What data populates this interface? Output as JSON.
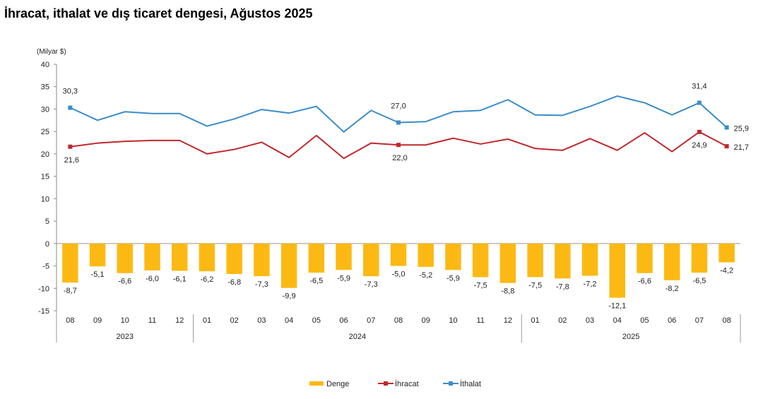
{
  "title": "İhracat, ithalat ve dış ticaret dengesi, Ağustos 2025",
  "chart_data": {
    "type": "bar+line",
    "unit_label": "(Milyar $)",
    "ylim": [
      -15,
      40
    ],
    "yticks": [
      40,
      35,
      30,
      25,
      20,
      15,
      10,
      5,
      0,
      -5,
      -10,
      -15
    ],
    "categories": [
      "08",
      "09",
      "10",
      "11",
      "12",
      "01",
      "02",
      "03",
      "04",
      "05",
      "06",
      "07",
      "08",
      "09",
      "10",
      "11",
      "12",
      "01",
      "02",
      "03",
      "04",
      "05",
      "06",
      "07",
      "08"
    ],
    "year_groups": [
      {
        "label": "2023",
        "start": 0,
        "end": 4
      },
      {
        "label": "2024",
        "start": 5,
        "end": 16
      },
      {
        "label": "2025",
        "start": 17,
        "end": 24
      }
    ],
    "series": [
      {
        "name": "Denge",
        "kind": "bar",
        "color": "#FDB913",
        "values": [
          -8.7,
          -5.1,
          -6.6,
          -6.0,
          -6.1,
          -6.2,
          -6.8,
          -7.3,
          -9.9,
          -6.5,
          -5.9,
          -7.3,
          -5.0,
          -5.2,
          -5.9,
          -7.5,
          -8.8,
          -7.5,
          -7.8,
          -7.2,
          -12.1,
          -6.6,
          -8.2,
          -6.5,
          -4.2
        ],
        "labels": [
          "-8,7",
          "-5,1",
          "-6,6",
          "-6,0",
          "-6,1",
          "-6,2",
          "-6,8",
          "-7,3",
          "-9,9",
          "-6,5",
          "-5,9",
          "-7,3",
          "-5,0",
          "-5,2",
          "-5,9",
          "-7,5",
          "-8,8",
          "-7,5",
          "-7,8",
          "-7,2",
          "-12,1",
          "-6,6",
          "-8,2",
          "-6,5",
          "-4,2"
        ]
      },
      {
        "name": "İhracat",
        "kind": "line",
        "color": "#C0282D",
        "values": [
          21.6,
          22.4,
          22.8,
          23.0,
          23.0,
          20.0,
          21.0,
          22.6,
          19.2,
          24.1,
          19.0,
          22.4,
          22.0,
          22.0,
          23.5,
          22.2,
          23.3,
          21.2,
          20.8,
          23.4,
          20.8,
          24.7,
          20.5,
          24.9,
          21.7
        ],
        "labels": [
          {
            "index": 0,
            "text": "21,6"
          },
          {
            "index": 12,
            "text": "22,0"
          },
          {
            "index": 23,
            "text": "24,9"
          },
          {
            "index": 24,
            "text": "21,7"
          }
        ]
      },
      {
        "name": "İthalat",
        "kind": "line",
        "color": "#3A8DC9",
        "values": [
          30.3,
          27.5,
          29.4,
          29.0,
          29.0,
          26.2,
          27.8,
          29.9,
          29.1,
          30.6,
          24.9,
          29.7,
          27.0,
          27.2,
          29.4,
          29.7,
          32.1,
          28.7,
          28.6,
          30.6,
          32.9,
          31.4,
          28.7,
          31.4,
          25.9
        ],
        "labels": [
          {
            "index": 0,
            "text": "30,3"
          },
          {
            "index": 12,
            "text": "27,0"
          },
          {
            "index": 23,
            "text": "31,4"
          },
          {
            "index": 24,
            "text": "25,9"
          }
        ]
      }
    ],
    "legend": [
      "Denge",
      "İhracat",
      "İthalat"
    ],
    "legend_position": "bottom"
  }
}
